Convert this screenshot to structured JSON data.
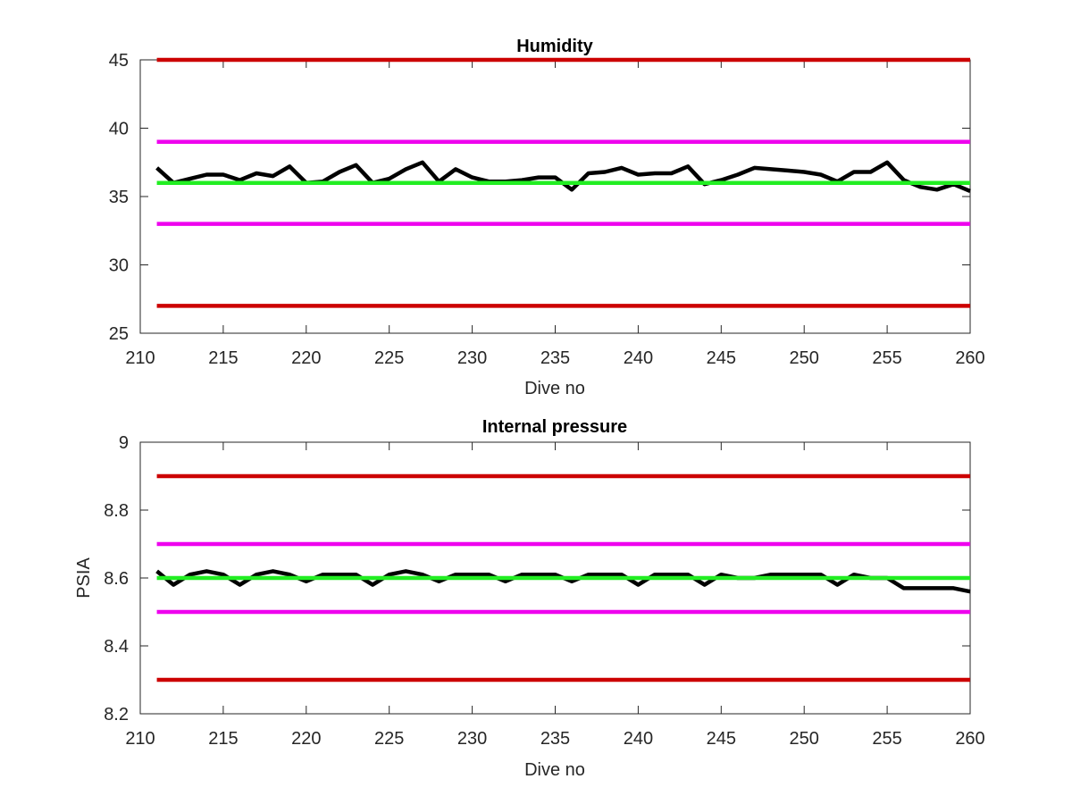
{
  "chart_data": [
    {
      "type": "line",
      "title": "Humidity",
      "xlabel": "Dive no",
      "ylabel": "",
      "xlim": [
        210,
        260
      ],
      "ylim": [
        25,
        45
      ],
      "xticks": [
        210,
        215,
        220,
        225,
        230,
        235,
        240,
        245,
        250,
        255,
        260
      ],
      "yticks": [
        25,
        30,
        35,
        40,
        45
      ],
      "grid": false,
      "series": [
        {
          "color": "#000000",
          "x": [
            211,
            212,
            213,
            214,
            215,
            216,
            217,
            218,
            219,
            220,
            221,
            222,
            223,
            224,
            225,
            226,
            227,
            228,
            229,
            230,
            231,
            232,
            233,
            234,
            235,
            236,
            237,
            238,
            239,
            240,
            241,
            242,
            243,
            244,
            245,
            246,
            247,
            248,
            249,
            250,
            251,
            252,
            253,
            254,
            255,
            256,
            257,
            258,
            259,
            260
          ],
          "y": [
            37.1,
            36.0,
            36.3,
            36.6,
            36.6,
            36.2,
            36.7,
            36.5,
            37.2,
            36.0,
            36.1,
            36.8,
            37.3,
            36.0,
            36.3,
            37.0,
            37.5,
            36.1,
            37.0,
            36.4,
            36.1,
            36.1,
            36.2,
            36.4,
            36.4,
            35.5,
            36.7,
            36.8,
            37.1,
            36.6,
            36.7,
            36.7,
            37.2,
            35.9,
            36.2,
            36.6,
            37.1,
            37.0,
            36.9,
            36.8,
            36.6,
            36.1,
            36.8,
            36.8,
            37.5,
            36.2,
            35.7,
            35.5,
            35.9,
            35.4
          ]
        }
      ],
      "reference_lines": [
        {
          "y": 45,
          "color": "#cc0000"
        },
        {
          "y": 39,
          "color": "#ee00ee"
        },
        {
          "y": 36,
          "color": "#22ee22"
        },
        {
          "y": 33,
          "color": "#ee00ee"
        },
        {
          "y": 27,
          "color": "#cc0000"
        }
      ]
    },
    {
      "type": "line",
      "title": "Internal pressure",
      "xlabel": "Dive no",
      "ylabel": "PSIA",
      "xlim": [
        210,
        260
      ],
      "ylim": [
        8.2,
        9
      ],
      "xticks": [
        210,
        215,
        220,
        225,
        230,
        235,
        240,
        245,
        250,
        255,
        260
      ],
      "yticks": [
        8.2,
        8.4,
        8.6,
        8.8,
        9
      ],
      "grid": false,
      "series": [
        {
          "color": "#000000",
          "x": [
            211,
            212,
            213,
            214,
            215,
            216,
            217,
            218,
            219,
            220,
            221,
            222,
            223,
            224,
            225,
            226,
            227,
            228,
            229,
            230,
            231,
            232,
            233,
            234,
            235,
            236,
            237,
            238,
            239,
            240,
            241,
            242,
            243,
            244,
            245,
            246,
            247,
            248,
            249,
            250,
            251,
            252,
            253,
            254,
            255,
            256,
            257,
            258,
            259,
            260
          ],
          "y": [
            8.62,
            8.58,
            8.61,
            8.62,
            8.61,
            8.58,
            8.61,
            8.62,
            8.61,
            8.59,
            8.61,
            8.61,
            8.61,
            8.58,
            8.61,
            8.62,
            8.61,
            8.59,
            8.61,
            8.61,
            8.61,
            8.59,
            8.61,
            8.61,
            8.61,
            8.59,
            8.61,
            8.61,
            8.61,
            8.58,
            8.61,
            8.61,
            8.61,
            8.58,
            8.61,
            8.6,
            8.6,
            8.61,
            8.61,
            8.61,
            8.61,
            8.58,
            8.61,
            8.6,
            8.6,
            8.57,
            8.57,
            8.57,
            8.57,
            8.56
          ]
        }
      ],
      "reference_lines": [
        {
          "y": 8.9,
          "color": "#cc0000"
        },
        {
          "y": 8.7,
          "color": "#ee00ee"
        },
        {
          "y": 8.6,
          "color": "#22ee22"
        },
        {
          "y": 8.5,
          "color": "#ee00ee"
        },
        {
          "y": 8.3,
          "color": "#cc0000"
        }
      ]
    }
  ]
}
